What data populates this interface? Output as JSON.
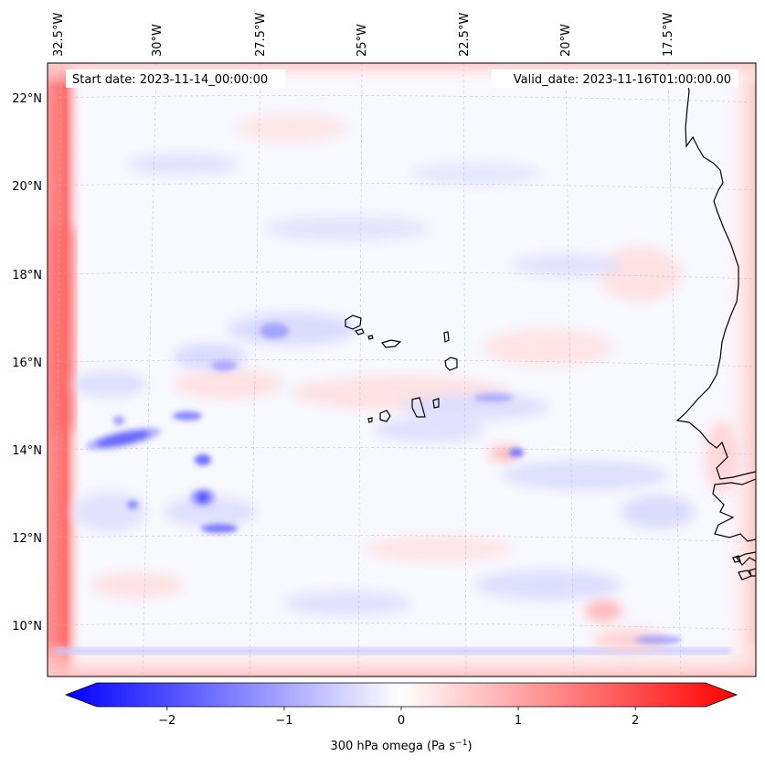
{
  "map": {
    "start_label": "Start date: 2023-11-14_00:00:00",
    "valid_label": "Valid_date: 2023-11-16T01:00:00.00",
    "lon_labels": [
      "32.5°W",
      "30°W",
      "27.5°W",
      "25°W",
      "22.5°W",
      "20°W",
      "17.5°W"
    ],
    "lat_labels": [
      "22°N",
      "20°N",
      "18°N",
      "16°N",
      "14°N",
      "12°N",
      "10°N"
    ],
    "field": "300 hPa omega",
    "colormap": "bwr",
    "coastline_color": "#000000"
  },
  "colorbar": {
    "label_main": "300 hPa omega (Pa s",
    "label_exp": "−1",
    "label_end": ")",
    "ticks": [
      "−2",
      "−1",
      "0",
      "1",
      "2"
    ],
    "tick_values": [
      -2,
      -1,
      0,
      1,
      2
    ],
    "range": [
      -2.6,
      2.6
    ],
    "extend": "both",
    "color_low": "#0000ff",
    "color_mid": "#ffffff",
    "color_high": "#ff0000"
  }
}
